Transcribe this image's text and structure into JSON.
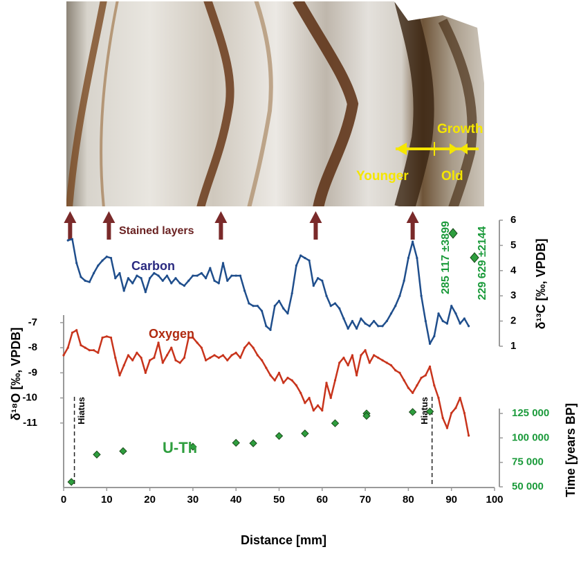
{
  "chart_data": {
    "type": "line",
    "xlabel": "Distance [mm]",
    "ylabel": "δ¹⁸O [‰, VPDB]",
    "y2label": "δ¹³C [‰, VPDB]",
    "y3label": "Time [years BP]",
    "xlim": [
      0,
      100
    ],
    "xticks": [
      0,
      10,
      20,
      30,
      40,
      50,
      60,
      70,
      80,
      90,
      100
    ],
    "ylim": [
      -11.5,
      -6.7
    ],
    "yticks": [
      -7,
      -8,
      -9,
      -10,
      -11
    ],
    "y2lim": [
      1,
      6
    ],
    "y2ticks": [
      1,
      2,
      3,
      4,
      5,
      6
    ],
    "y3lim": [
      50000,
      130000
    ],
    "y3ticks": [
      {
        "value": 50000,
        "label": "50 000"
      },
      {
        "value": 75000,
        "label": "75 000"
      },
      {
        "value": 100000,
        "label": "100 000"
      },
      {
        "value": 125000,
        "label": "125 000"
      }
    ],
    "series": [
      {
        "name": "Carbon",
        "color": "#1f4e8c",
        "axis": "y2",
        "type": "line",
        "x": [
          1,
          2,
          3,
          4,
          5,
          6,
          7,
          8,
          9,
          10,
          11,
          12,
          13,
          14,
          15,
          16,
          17,
          18,
          19,
          20,
          21,
          22,
          23,
          24,
          25,
          26,
          27,
          28,
          29,
          30,
          31,
          32,
          33,
          34,
          35,
          36,
          37,
          38,
          39,
          40,
          41,
          42,
          43,
          44,
          45,
          46,
          47,
          48,
          49,
          50,
          51,
          52,
          53,
          54,
          55,
          56,
          57,
          58,
          59,
          60,
          61,
          62,
          63,
          64,
          65,
          66,
          67,
          68,
          69,
          70,
          71,
          72,
          73,
          74,
          75,
          76,
          77,
          78,
          79,
          80,
          81,
          82,
          83,
          84,
          85,
          86,
          87,
          88,
          89,
          90,
          91,
          92,
          93,
          94
        ],
        "values": [
          5.2,
          5.25,
          4.3,
          3.75,
          3.6,
          3.55,
          3.9,
          4.2,
          4.4,
          4.55,
          4.5,
          3.7,
          3.9,
          3.2,
          3.7,
          3.5,
          3.8,
          3.7,
          3.15,
          3.7,
          3.9,
          3.8,
          3.6,
          3.8,
          3.5,
          3.7,
          3.5,
          3.4,
          3.6,
          3.8,
          3.8,
          3.9,
          3.7,
          4.1,
          3.6,
          3.5,
          4.3,
          3.6,
          3.8,
          3.8,
          3.8,
          3.2,
          2.7,
          2.6,
          2.6,
          2.4,
          1.8,
          1.65,
          2.6,
          2.8,
          2.5,
          2.3,
          3.1,
          4.2,
          4.6,
          4.5,
          4.4,
          3.4,
          3.7,
          3.6,
          3.0,
          2.6,
          2.7,
          2.5,
          2.1,
          1.7,
          2.0,
          1.7,
          2.1,
          1.9,
          1.8,
          2.0,
          1.8,
          1.8,
          2.0,
          2.3,
          2.6,
          3.0,
          3.6,
          4.5,
          5.15,
          4.5,
          3.0,
          2.0,
          1.1,
          1.4,
          2.3,
          2.0,
          1.9,
          2.6,
          2.3,
          1.9,
          2.1,
          1.8
        ]
      },
      {
        "name": "Oxygen",
        "color": "#c8341c",
        "axis": "y",
        "type": "line",
        "x": [
          0,
          1,
          2,
          3,
          4,
          5,
          6,
          7,
          8,
          9,
          10,
          11,
          12,
          13,
          14,
          15,
          16,
          17,
          18,
          19,
          20,
          21,
          22,
          23,
          24,
          25,
          26,
          27,
          28,
          29,
          30,
          31,
          32,
          33,
          34,
          35,
          36,
          37,
          38,
          39,
          40,
          41,
          42,
          43,
          44,
          45,
          46,
          47,
          48,
          49,
          50,
          51,
          52,
          53,
          54,
          55,
          56,
          57,
          58,
          59,
          60,
          61,
          62,
          63,
          64,
          65,
          66,
          67,
          68,
          69,
          70,
          71,
          72,
          73,
          74,
          75,
          76,
          77,
          78,
          79,
          80,
          81,
          82,
          83,
          84,
          85,
          86,
          87,
          88,
          89,
          90,
          91,
          92,
          93,
          94
        ],
        "values": [
          -8.3,
          -8.0,
          -7.4,
          -7.3,
          -7.9,
          -8.0,
          -8.1,
          -8.1,
          -8.2,
          -7.6,
          -7.55,
          -7.6,
          -8.4,
          -9.1,
          -8.7,
          -8.3,
          -8.5,
          -8.2,
          -8.4,
          -9.0,
          -8.5,
          -8.4,
          -7.8,
          -8.6,
          -8.3,
          -8.0,
          -8.5,
          -8.6,
          -8.4,
          -7.6,
          -7.6,
          -7.8,
          -8.0,
          -8.5,
          -8.4,
          -8.3,
          -8.4,
          -8.3,
          -8.5,
          -8.3,
          -8.2,
          -8.4,
          -8.0,
          -7.8,
          -8.0,
          -8.3,
          -8.5,
          -8.8,
          -9.1,
          -9.3,
          -9.0,
          -9.4,
          -9.2,
          -9.3,
          -9.5,
          -9.8,
          -10.2,
          -10.0,
          -10.5,
          -10.3,
          -10.5,
          -9.4,
          -10.0,
          -9.3,
          -8.6,
          -8.4,
          -8.7,
          -8.3,
          -9.1,
          -8.3,
          -8.1,
          -8.6,
          -8.3,
          -8.4,
          -8.5,
          -8.6,
          -8.7,
          -8.9,
          -9.0,
          -9.3,
          -9.6,
          -9.8,
          -9.5,
          -9.2,
          -9.1,
          -8.75,
          -9.5,
          -10.0,
          -10.8,
          -11.2,
          -10.6,
          -10.4,
          -10.0,
          -10.6,
          -11.5
        ]
      },
      {
        "name": "U-Th",
        "color": "#2e9e3e",
        "axis": "y3",
        "type": "scatter",
        "x": [
          1.8,
          7.7,
          13.8,
          30,
          40,
          44,
          50,
          56,
          63,
          70.3,
          70.3,
          81,
          85
        ],
        "values": [
          55000,
          83000,
          86500,
          91000,
          95000,
          94500,
          102000,
          104500,
          115000,
          125000,
          122500,
          126500,
          127000
        ]
      }
    ],
    "hiatus": {
      "label": "Hiatus",
      "x": [
        2.5,
        85.5
      ]
    },
    "stained_layers": {
      "label": "Stained layers",
      "x": [
        1.5,
        10.5,
        36.5,
        58.5,
        81
      ]
    },
    "annotations": [
      "285 117 ±3899",
      "229 629 ±2144"
    ],
    "photo": {
      "growth": "Growth",
      "younger": "Younger",
      "old": "Old"
    }
  }
}
